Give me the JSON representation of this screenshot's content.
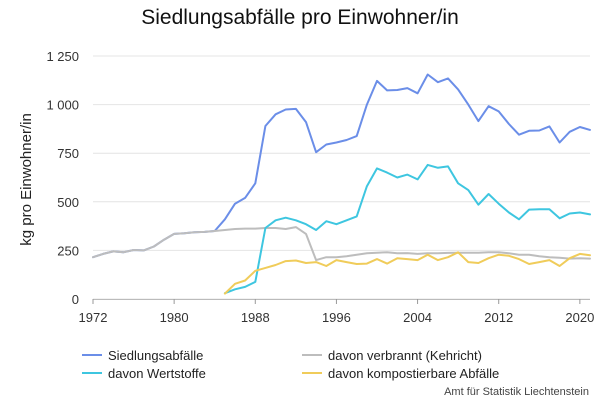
{
  "chart_data": {
    "type": "line",
    "title": "Siedlungsabfälle pro Einwohner/in",
    "ylabel": "kg pro Einwohner/in",
    "xlabel": "",
    "source": "Amt für Statistik Liechtenstein",
    "xlim": [
      1972,
      2021
    ],
    "ylim": [
      0,
      1250
    ],
    "x_ticks": [
      1972,
      1980,
      1988,
      1996,
      2004,
      2012,
      2020
    ],
    "y_ticks": [
      0,
      250,
      500,
      750,
      1000,
      1250
    ],
    "y_tick_labels": [
      "0",
      "250",
      "500",
      "750",
      "1 000",
      "1 250"
    ],
    "grid": "horizontal",
    "legend_position": "bottom",
    "series": [
      {
        "name": "Siedlungsabfälle",
        "color": "#6b8ee8",
        "points": [
          [
            1972,
            215
          ],
          [
            1973,
            232
          ],
          [
            1974,
            245
          ],
          [
            1975,
            240
          ],
          [
            1976,
            252
          ],
          [
            1977,
            250
          ],
          [
            1978,
            270
          ],
          [
            1979,
            305
          ],
          [
            1980,
            335
          ],
          [
            1981,
            338
          ],
          [
            1982,
            343
          ],
          [
            1983,
            345
          ],
          [
            1984,
            350
          ],
          [
            1985,
            410
          ],
          [
            1986,
            490
          ],
          [
            1987,
            520
          ],
          [
            1988,
            595
          ],
          [
            1989,
            890
          ],
          [
            1990,
            950
          ],
          [
            1991,
            975
          ],
          [
            1992,
            978
          ],
          [
            1993,
            910
          ],
          [
            1994,
            755
          ],
          [
            1995,
            795
          ],
          [
            1996,
            805
          ],
          [
            1997,
            818
          ],
          [
            1998,
            838
          ],
          [
            1999,
            1000
          ],
          [
            2000,
            1122
          ],
          [
            2001,
            1073
          ],
          [
            2002,
            1075
          ],
          [
            2003,
            1085
          ],
          [
            2004,
            1058
          ],
          [
            2005,
            1155
          ],
          [
            2006,
            1115
          ],
          [
            2007,
            1135
          ],
          [
            2008,
            1078
          ],
          [
            2009,
            1000
          ],
          [
            2010,
            915
          ],
          [
            2011,
            992
          ],
          [
            2012,
            965
          ],
          [
            2013,
            900
          ],
          [
            2014,
            845
          ],
          [
            2015,
            865
          ],
          [
            2016,
            867
          ],
          [
            2017,
            888
          ],
          [
            2018,
            805
          ],
          [
            2019,
            860
          ],
          [
            2020,
            885
          ],
          [
            2021,
            870
          ]
        ]
      },
      {
        "name": "davon verbrannt (Kehricht)",
        "color": "#bdbdbd",
        "points": [
          [
            1972,
            215
          ],
          [
            1973,
            232
          ],
          [
            1974,
            245
          ],
          [
            1975,
            240
          ],
          [
            1976,
            252
          ],
          [
            1977,
            250
          ],
          [
            1978,
            270
          ],
          [
            1979,
            305
          ],
          [
            1980,
            335
          ],
          [
            1981,
            338
          ],
          [
            1982,
            343
          ],
          [
            1983,
            345
          ],
          [
            1984,
            350
          ],
          [
            1985,
            355
          ],
          [
            1986,
            360
          ],
          [
            1987,
            362
          ],
          [
            1988,
            362
          ],
          [
            1989,
            365
          ],
          [
            1990,
            365
          ],
          [
            1991,
            360
          ],
          [
            1992,
            370
          ],
          [
            1993,
            335
          ],
          [
            1994,
            200
          ],
          [
            1995,
            215
          ],
          [
            1996,
            215
          ],
          [
            1997,
            220
          ],
          [
            1998,
            228
          ],
          [
            1999,
            235
          ],
          [
            2000,
            238
          ],
          [
            2001,
            240
          ],
          [
            2002,
            235
          ],
          [
            2003,
            236
          ],
          [
            2004,
            232
          ],
          [
            2005,
            235
          ],
          [
            2006,
            235
          ],
          [
            2007,
            237
          ],
          [
            2008,
            238
          ],
          [
            2009,
            238
          ],
          [
            2010,
            238
          ],
          [
            2011,
            240
          ],
          [
            2012,
            240
          ],
          [
            2013,
            235
          ],
          [
            2014,
            228
          ],
          [
            2015,
            228
          ],
          [
            2016,
            220
          ],
          [
            2017,
            215
          ],
          [
            2018,
            212
          ],
          [
            2019,
            208
          ],
          [
            2020,
            210
          ],
          [
            2021,
            208
          ]
        ]
      },
      {
        "name": "davon Wertstoffe",
        "color": "#3ec6e0",
        "points": [
          [
            1985,
            30
          ],
          [
            1986,
            50
          ],
          [
            1987,
            62
          ],
          [
            1988,
            88
          ],
          [
            1989,
            365
          ],
          [
            1990,
            405
          ],
          [
            1991,
            418
          ],
          [
            1992,
            405
          ],
          [
            1993,
            385
          ],
          [
            1994,
            355
          ],
          [
            1995,
            400
          ],
          [
            1996,
            385
          ],
          [
            1997,
            405
          ],
          [
            1998,
            425
          ],
          [
            1999,
            580
          ],
          [
            2000,
            672
          ],
          [
            2001,
            650
          ],
          [
            2002,
            625
          ],
          [
            2003,
            640
          ],
          [
            2004,
            615
          ],
          [
            2005,
            690
          ],
          [
            2006,
            675
          ],
          [
            2007,
            682
          ],
          [
            2008,
            595
          ],
          [
            2009,
            560
          ],
          [
            2010,
            485
          ],
          [
            2011,
            540
          ],
          [
            2012,
            490
          ],
          [
            2013,
            445
          ],
          [
            2014,
            410
          ],
          [
            2015,
            460
          ],
          [
            2016,
            462
          ],
          [
            2017,
            462
          ],
          [
            2018,
            415
          ],
          [
            2019,
            440
          ],
          [
            2020,
            445
          ],
          [
            2021,
            435
          ]
        ]
      },
      {
        "name": "davon kompostierbare Abfälle",
        "color": "#f0cc5a",
        "points": [
          [
            1985,
            28
          ],
          [
            1986,
            78
          ],
          [
            1987,
            95
          ],
          [
            1988,
            145
          ],
          [
            1989,
            160
          ],
          [
            1990,
            175
          ],
          [
            1991,
            195
          ],
          [
            1992,
            198
          ],
          [
            1993,
            185
          ],
          [
            1994,
            190
          ],
          [
            1995,
            170
          ],
          [
            1996,
            200
          ],
          [
            1997,
            190
          ],
          [
            1998,
            180
          ],
          [
            1999,
            182
          ],
          [
            2000,
            205
          ],
          [
            2001,
            182
          ],
          [
            2002,
            210
          ],
          [
            2003,
            205
          ],
          [
            2004,
            200
          ],
          [
            2005,
            228
          ],
          [
            2006,
            200
          ],
          [
            2007,
            215
          ],
          [
            2008,
            240
          ],
          [
            2009,
            190
          ],
          [
            2010,
            185
          ],
          [
            2011,
            210
          ],
          [
            2012,
            228
          ],
          [
            2013,
            222
          ],
          [
            2014,
            205
          ],
          [
            2015,
            180
          ],
          [
            2016,
            190
          ],
          [
            2017,
            200
          ],
          [
            2018,
            170
          ],
          [
            2019,
            210
          ],
          [
            2020,
            232
          ],
          [
            2021,
            225
          ]
        ]
      }
    ]
  }
}
